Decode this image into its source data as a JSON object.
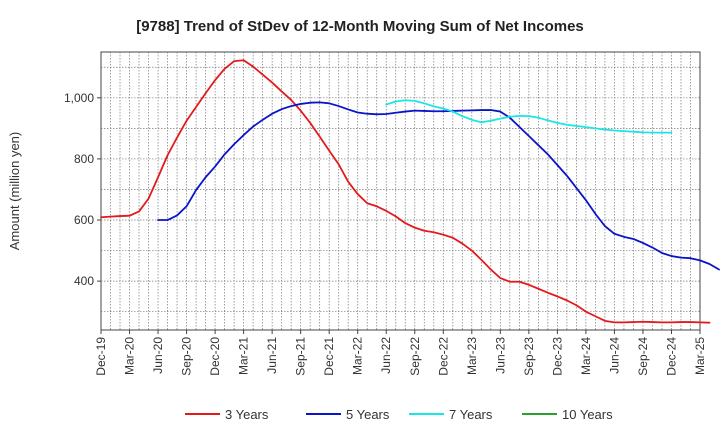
{
  "chart_data": {
    "type": "line",
    "title": "[9788]  Trend of StDev of 12-Month Moving Sum of Net Incomes",
    "ylabel": "Amount (million yen)",
    "xlabel": "",
    "x_tick_labels": [
      "Dec-19",
      "Mar-20",
      "Jun-20",
      "Sep-20",
      "Dec-20",
      "Mar-21",
      "Jun-21",
      "Sep-21",
      "Dec-21",
      "Mar-22",
      "Jun-22",
      "Sep-22",
      "Dec-22",
      "Mar-23",
      "Jun-23",
      "Sep-23",
      "Dec-23",
      "Mar-24",
      "Jun-24",
      "Sep-24",
      "Dec-24",
      "Mar-25"
    ],
    "y_ticks": [
      400,
      600,
      800,
      1000
    ],
    "y_tick_labels": [
      "400",
      "600",
      "800",
      "1,000"
    ],
    "ylim": [
      240,
      1150
    ],
    "grid": true,
    "legend_position": "bottom",
    "series": [
      {
        "name": "3 Years",
        "color": "#e31a1c",
        "start_index": 0,
        "values": [
          609,
          611,
          613,
          614,
          628,
          670,
          740,
          812,
          870,
          925,
          970,
          1015,
          1058,
          1095,
          1120,
          1123,
          1102,
          1076,
          1050,
          1021,
          993,
          958,
          918,
          873,
          827,
          782,
          725,
          685,
          655,
          645,
          630,
          612,
          590,
          575,
          565,
          560,
          552,
          542,
          523,
          500,
          470,
          438,
          410,
          398,
          398,
          388,
          375,
          362,
          350,
          337,
          321,
          300,
          285,
          270,
          265,
          265,
          266,
          267,
          266,
          265,
          265,
          266,
          266,
          265,
          264
        ]
      },
      {
        "name": "5 Years",
        "color": "#0a14c8",
        "start_index": 6,
        "values": [
          600,
          600,
          615,
          645,
          698,
          740,
          775,
          815,
          848,
          878,
          906,
          928,
          948,
          963,
          973,
          980,
          984,
          985,
          982,
          973,
          962,
          952,
          948,
          946,
          947,
          951,
          955,
          958,
          957,
          956,
          956,
          957,
          958,
          959,
          960,
          960,
          955,
          935,
          905,
          875,
          845,
          815,
          780,
          745,
          705,
          665,
          620,
          580,
          555,
          545,
          538,
          525,
          510,
          492,
          482,
          477,
          475,
          468,
          456,
          438
        ]
      },
      {
        "name": "7 Years",
        "color": "#19e6e6",
        "start_index": 30,
        "values": [
          978,
          988,
          992,
          990,
          982,
          972,
          965,
          955,
          940,
          928,
          920,
          925,
          932,
          938,
          941,
          940,
          935,
          926,
          918,
          912,
          908,
          904,
          900,
          896,
          893,
          891,
          889,
          887,
          886,
          886,
          886
        ]
      },
      {
        "name": "10 Years",
        "color": "#2ca02c",
        "start_index": 0,
        "values": []
      }
    ]
  }
}
